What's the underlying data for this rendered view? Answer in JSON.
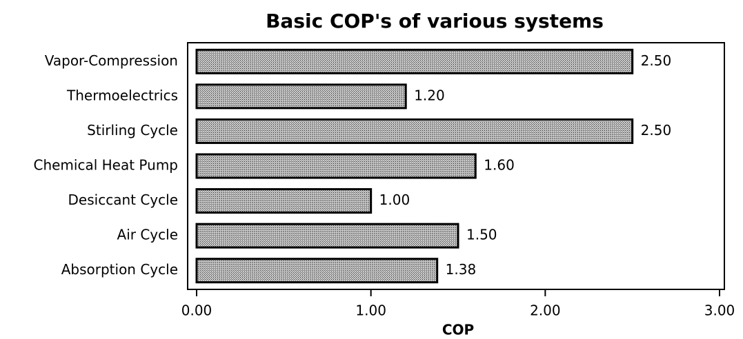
{
  "chart_data": {
    "type": "barh",
    "title": "Basic COP's of various systems",
    "xlabel": "COP",
    "categories": [
      "Vapor-Compression",
      "Thermoelectrics",
      "Stirling Cycle",
      "Chemical Heat Pump",
      "Desiccant Cycle",
      "Air Cycle",
      "Absorption Cycle"
    ],
    "values": [
      2.5,
      1.2,
      2.5,
      1.6,
      1.0,
      1.5,
      1.38
    ],
    "value_labels": [
      "2.50",
      "1.20",
      "2.50",
      "1.60",
      "1.00",
      "1.50",
      "1.38"
    ],
    "color": "#9a9a9a",
    "xlim": [
      0,
      3
    ],
    "xticks": [
      {
        "value": 0,
        "label": "0.00"
      },
      {
        "value": 1,
        "label": "1.00"
      },
      {
        "value": 2,
        "label": "2.00"
      },
      {
        "value": 3,
        "label": "3.00"
      }
    ],
    "grid": false
  }
}
